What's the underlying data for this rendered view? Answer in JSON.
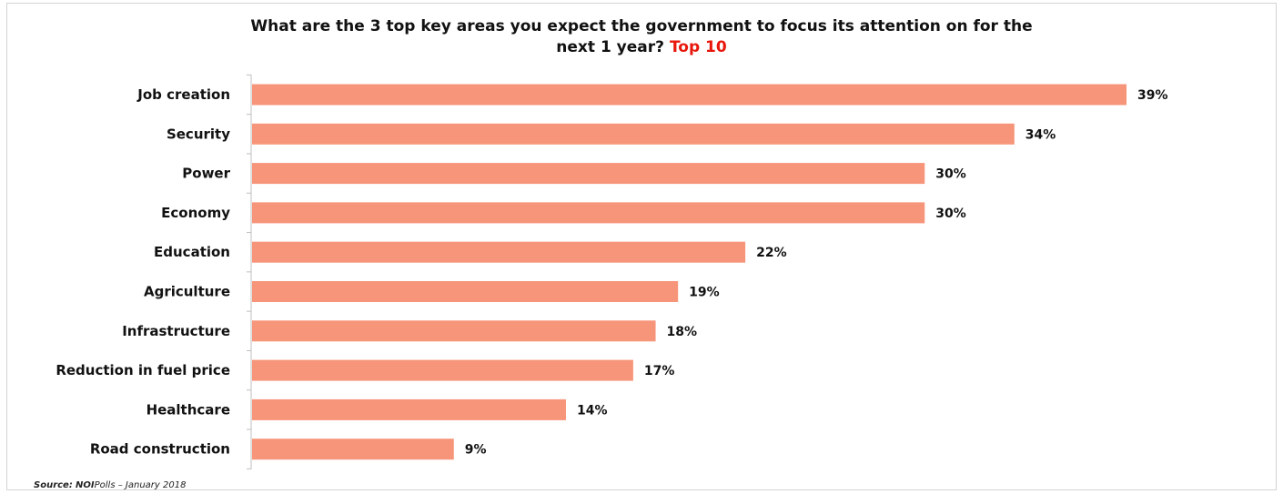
{
  "title": {
    "main": "What are the 3 top key areas you expect the government to focus its attention on for the",
    "line2": "next 1 year?",
    "highlight": "Top 10"
  },
  "source": {
    "label": "Source:",
    "brand": "NOI",
    "text": "Polls – January 2018"
  },
  "colors": {
    "bar": "#f7957a",
    "highlight": "#e8170c"
  },
  "chart_data": {
    "type": "bar",
    "orientation": "horizontal",
    "categories": [
      "Job creation",
      "Security",
      "Power",
      "Economy",
      "Education",
      "Agriculture",
      "Infrastructure",
      "Reduction in fuel price",
      "Healthcare",
      "Road construction"
    ],
    "values": [
      39,
      34,
      30,
      30,
      22,
      19,
      18,
      17,
      14,
      9
    ],
    "value_labels": [
      "39%",
      "34%",
      "30%",
      "30%",
      "22%",
      "19%",
      "18%",
      "17%",
      "14%",
      "9%"
    ],
    "unit": "%",
    "xlim": [
      0,
      39
    ],
    "grid": false,
    "legend": "none"
  }
}
